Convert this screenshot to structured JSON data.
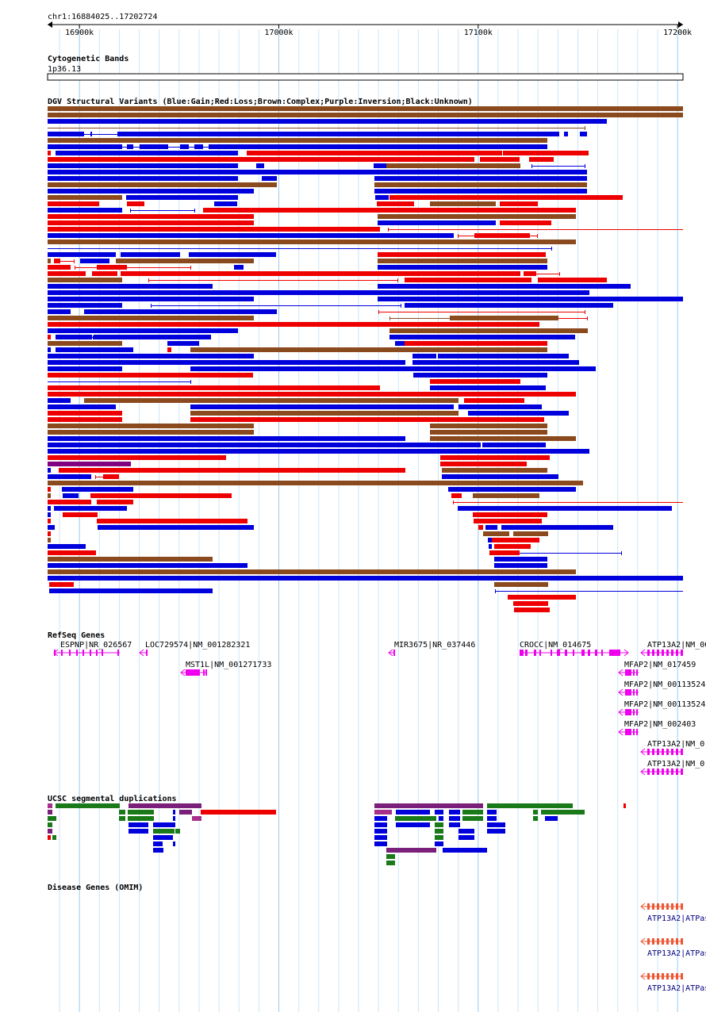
{
  "location": "chr1:16884025..17202724",
  "ruler": {
    "start": 16884025,
    "end": 17202724,
    "ticks": [
      {
        "pos": 16900000,
        "label": "16900k"
      },
      {
        "pos": 17000000,
        "label": "17000k"
      },
      {
        "pos": 17100000,
        "label": "17100k"
      },
      {
        "pos": 17200000,
        "label": "17200k"
      }
    ]
  },
  "tracks": {
    "cytoband": {
      "title": "Cytogenetic Bands",
      "band": "1p36.13"
    },
    "dgv": {
      "title": "DGV Structural Variants (Blue:Gain;Red:Loss;Brown:Complex;Purple:Inversion;Black:Unknown)",
      "colors": {
        "gain": "#0000dd",
        "loss": "#ee0000",
        "complex": "#8b4a1e",
        "inversion": "#800080"
      }
    },
    "refseq": {
      "title": "RefSeq Genes",
      "color": "#ee00ee",
      "genes": [
        {
          "label": "ESPNP|NR_026567"
        },
        {
          "label": "LOC729574|NM_001282321"
        },
        {
          "label": "MST1L|NM_001271733"
        },
        {
          "label": "MIR3675|NR_037446"
        },
        {
          "label": "CROCC|NM_014675"
        },
        {
          "label": "ATP13A2|NM_00"
        },
        {
          "label": "MFAP2|NM_017459"
        },
        {
          "label": "MFAP2|NM_00113524"
        },
        {
          "label": "MFAP2|NM_00113524"
        },
        {
          "label": "MFAP2|NM_002403"
        },
        {
          "label": "ATP13A2|NM_0"
        },
        {
          "label": "ATP13A2|NM_0"
        }
      ]
    },
    "segdups": {
      "title": "UCSC segmental duplications"
    },
    "omim": {
      "title": "Disease Genes (OMIM)",
      "color": "#ee5533",
      "items": [
        {
          "label": "ATP13A2|ATPas"
        },
        {
          "label": "ATP13A2|ATPas"
        },
        {
          "label": "ATP13A2|ATPas"
        }
      ]
    }
  }
}
